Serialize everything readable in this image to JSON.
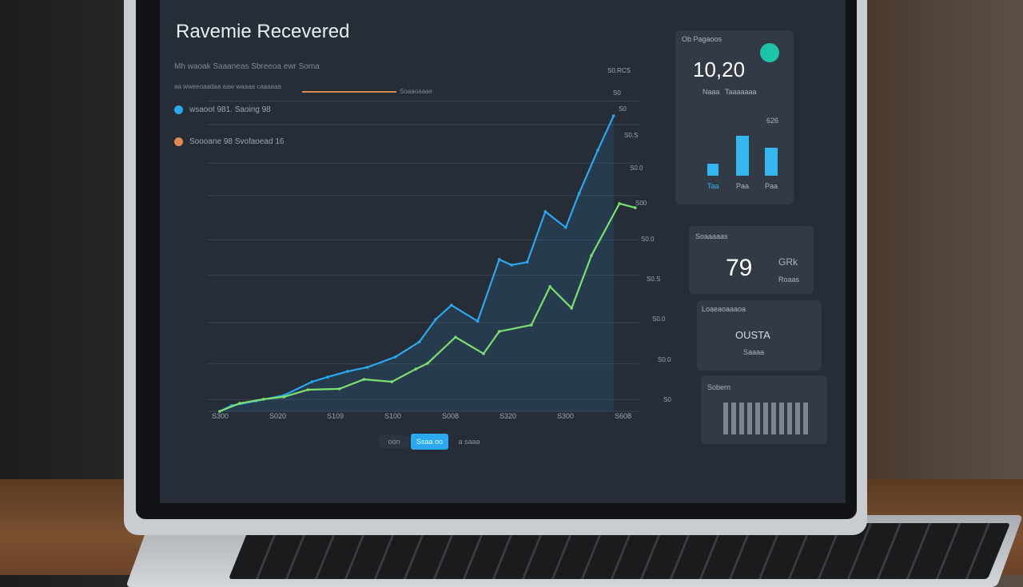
{
  "dashboard": {
    "title": "Ravemie Recevered",
    "subtitle": "Mh waoak Saaaneas Sbreeoa ewr Soma",
    "subtitle2": "aa wweeoaadaa aaw waaaa caaaaaa",
    "subtitle2_tail": "Soaaoaaae",
    "legend": [
      {
        "label": "wsaoot 981. Saoing 98",
        "color": "#2aa8f0"
      },
      {
        "label": "Soooane 98 Svofaoead 16",
        "color": "#e08a50"
      }
    ],
    "accent_line_color": "#d88a50",
    "pager": {
      "prev": "oon",
      "active": "Ssaa oo",
      "next": "a saaa"
    }
  },
  "side": {
    "card1": {
      "label": "Ob Pagaoos",
      "value": "10,20",
      "sub1": "Naaa",
      "sub2": "Taaaaaaa",
      "right_value": "626",
      "bar_labels": [
        "Taa",
        "Paa",
        "Paa"
      ],
      "bar_values": [
        15,
        50,
        35
      ],
      "badge_color": "#1cc4a8"
    },
    "card2": {
      "label": "Soaaaaas",
      "value": "79",
      "right1": "GRk",
      "right2": "Roaas"
    },
    "card3": {
      "label": "Loaeaoaaaoa",
      "value": "OUSTA",
      "sub": "Saaaa"
    },
    "card4": {
      "label": "Sobern"
    }
  },
  "chart_data": {
    "type": "line",
    "title": "Ravemie Recevered",
    "x_tick_labels": [
      "S300",
      "S020",
      "S109",
      "S100",
      "S008",
      "S320",
      "S300",
      "S608"
    ],
    "y_tick_labels": [
      "S0.RCS",
      "S0",
      "S0",
      "S0.S",
      "S0.0",
      "S00",
      "S0.0",
      "S0.S",
      "S0.0",
      "S0.0",
      "S0"
    ],
    "xlim": [
      0,
      7.2
    ],
    "ylim": [
      0,
      100
    ],
    "grid": true,
    "series": [
      {
        "color": "#2aa8f0",
        "x": [
          0,
          0.2,
          0.62,
          1.1,
          1.58,
          1.85,
          2.19,
          2.53,
          3.01,
          3.42,
          3.7,
          3.97,
          4.42,
          4.79,
          5.0,
          5.27,
          5.58,
          5.93,
          6.16,
          6.48,
          6.75
        ],
        "y": [
          0,
          1.9,
          3.5,
          5.4,
          10,
          11.6,
          13.5,
          14.9,
          18.4,
          23.5,
          31.1,
          35.9,
          30.5,
          51.4,
          49.5,
          50.5,
          67.6,
          62.2,
          73.8,
          88.4,
          100
        ]
      },
      {
        "color": "#7be070",
        "x": [
          0,
          0.34,
          0.75,
          1.1,
          1.51,
          2.05,
          2.47,
          2.95,
          3.36,
          3.56,
          4.04,
          4.52,
          4.79,
          5.34,
          5.66,
          6.03,
          6.37,
          6.85,
          7.12
        ],
        "y": [
          0,
          2.7,
          4.1,
          4.9,
          7.3,
          7.6,
          10.8,
          10,
          14.3,
          16.2,
          25.1,
          19.5,
          27,
          29.2,
          42.2,
          34.9,
          52.7,
          70.3,
          68.9
        ]
      }
    ]
  }
}
